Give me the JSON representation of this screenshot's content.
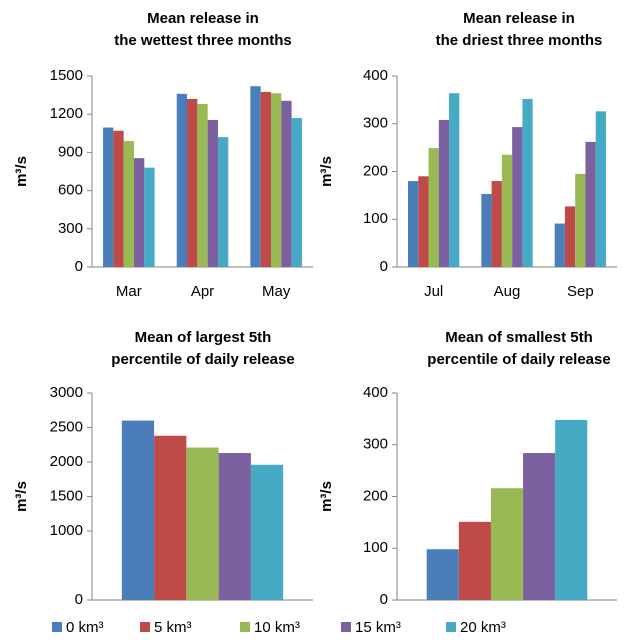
{
  "legend": [
    {
      "name": "0 km³",
      "color": "#4a7ebb"
    },
    {
      "name": "5 km³",
      "color": "#be4b48"
    },
    {
      "name": "10 km³",
      "color": "#98b954"
    },
    {
      "name": "15 km³",
      "color": "#7d60a0"
    },
    {
      "name": "20 km³",
      "color": "#46aac5"
    }
  ],
  "chart_data": [
    {
      "type": "bar",
      "title": "Mean release in\nthe wettest three months",
      "ylabel": "m³/s",
      "categories": [
        "Mar",
        "Apr",
        "May"
      ],
      "series": [
        {
          "values": [
            1095,
            1360,
            1420
          ]
        },
        {
          "values": [
            1070,
            1320,
            1375
          ]
        },
        {
          "values": [
            990,
            1280,
            1365
          ]
        },
        {
          "values": [
            855,
            1155,
            1305
          ]
        },
        {
          "values": [
            780,
            1020,
            1170
          ]
        }
      ],
      "ylim": [
        0,
        1500
      ],
      "yticks": [
        0,
        300,
        600,
        900,
        1200,
        1500
      ],
      "grid": false
    },
    {
      "type": "bar",
      "title": "Mean release in\nthe driest three months",
      "ylabel": "m³/s",
      "categories": [
        "Jul",
        "Aug",
        "Sep"
      ],
      "series": [
        {
          "values": [
            180,
            153,
            91
          ]
        },
        {
          "values": [
            190,
            180,
            127
          ]
        },
        {
          "values": [
            249,
            235,
            195
          ]
        },
        {
          "values": [
            308,
            293,
            262
          ]
        },
        {
          "values": [
            364,
            352,
            326
          ]
        }
      ],
      "ylim": [
        0,
        400
      ],
      "yticks": [
        0,
        100,
        200,
        300,
        400
      ],
      "grid": false
    },
    {
      "type": "bar",
      "title": "Mean of largest 5th\npercentile of daily release",
      "ylabel": "m³/s",
      "categories": [
        null
      ],
      "series": [
        {
          "values": [
            2600
          ]
        },
        {
          "values": [
            2380
          ]
        },
        {
          "values": [
            2210
          ]
        },
        {
          "values": [
            2130
          ]
        },
        {
          "values": [
            1960
          ]
        }
      ],
      "ylim": [
        0,
        3000
      ],
      "yticks": [
        0,
        1000,
        1500,
        2000,
        2500,
        3000
      ],
      "grid": false
    },
    {
      "type": "bar",
      "title": "Mean of smallest 5th\npercentile of daily release",
      "ylabel": "m³/s",
      "categories": [
        null
      ],
      "series": [
        {
          "values": [
            98
          ]
        },
        {
          "values": [
            151
          ]
        },
        {
          "values": [
            216
          ]
        },
        {
          "values": [
            284
          ]
        },
        {
          "values": [
            348
          ]
        }
      ],
      "ylim": [
        0,
        400
      ],
      "yticks": [
        0,
        100,
        200,
        300,
        400
      ],
      "grid": false
    }
  ]
}
